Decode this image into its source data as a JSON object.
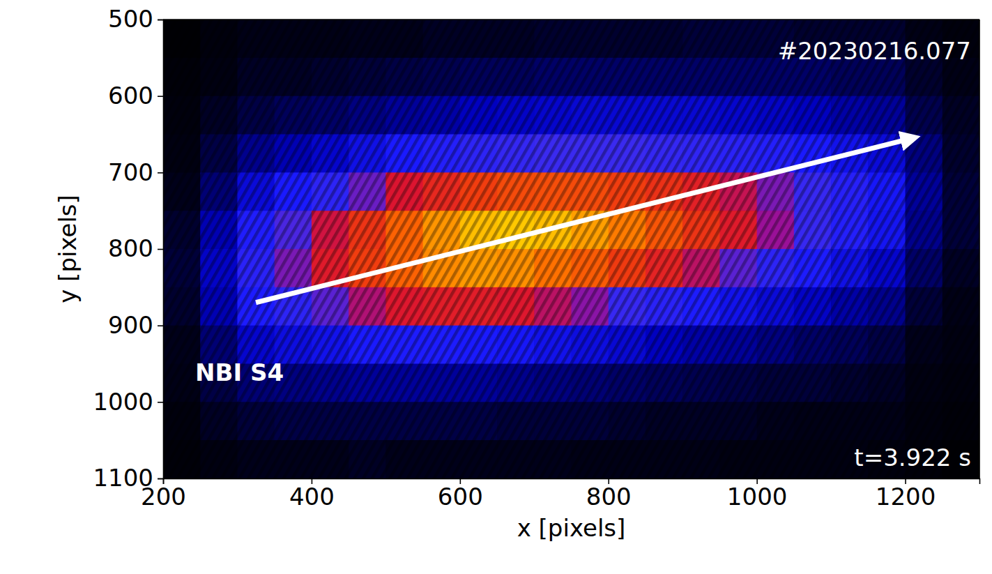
{
  "chart_data": {
    "type": "heatmap",
    "x": [
      225,
      275,
      325,
      375,
      425,
      475,
      525,
      575,
      625,
      675,
      725,
      775,
      825,
      875,
      925,
      975,
      1025,
      1075,
      1125,
      1175,
      1225,
      1275
    ],
    "y": [
      525,
      575,
      625,
      675,
      725,
      775,
      825,
      875,
      925,
      975,
      1025,
      1075
    ],
    "cells": [
      [
        0.01,
        0.03,
        0.05,
        0.05,
        0.05,
        0.06,
        0.06,
        0.07,
        0.07,
        0.07,
        0.08,
        0.08,
        0.08,
        0.08,
        0.09,
        0.09,
        0.09,
        0.08,
        0.08,
        0.08,
        0.05,
        0.03
      ],
      [
        0.02,
        0.04,
        0.07,
        0.07,
        0.08,
        0.09,
        0.1,
        0.11,
        0.12,
        0.12,
        0.13,
        0.13,
        0.13,
        0.13,
        0.13,
        0.13,
        0.13,
        0.13,
        0.12,
        0.12,
        0.08,
        0.05
      ],
      [
        0.03,
        0.07,
        0.1,
        0.12,
        0.13,
        0.15,
        0.17,
        0.18,
        0.2,
        0.21,
        0.22,
        0.23,
        0.23,
        0.23,
        0.23,
        0.22,
        0.21,
        0.2,
        0.18,
        0.17,
        0.11,
        0.07
      ],
      [
        0.04,
        0.1,
        0.16,
        0.19,
        0.22,
        0.26,
        0.3,
        0.33,
        0.36,
        0.38,
        0.4,
        0.4,
        0.4,
        0.38,
        0.37,
        0.35,
        0.33,
        0.3,
        0.27,
        0.24,
        0.15,
        0.08
      ],
      [
        0.06,
        0.14,
        0.24,
        0.3,
        0.36,
        0.43,
        0.52,
        0.59,
        0.66,
        0.7,
        0.71,
        0.7,
        0.66,
        0.62,
        0.56,
        0.5,
        0.44,
        0.39,
        0.34,
        0.29,
        0.17,
        0.09
      ],
      [
        0.08,
        0.19,
        0.32,
        0.41,
        0.51,
        0.63,
        0.77,
        0.88,
        0.96,
        0.98,
        0.96,
        0.9,
        0.83,
        0.73,
        0.63,
        0.54,
        0.46,
        0.39,
        0.33,
        0.28,
        0.16,
        0.09
      ],
      [
        0.09,
        0.21,
        0.35,
        0.44,
        0.54,
        0.66,
        0.77,
        0.86,
        0.89,
        0.87,
        0.81,
        0.75,
        0.65,
        0.57,
        0.49,
        0.42,
        0.36,
        0.31,
        0.26,
        0.22,
        0.13,
        0.07
      ],
      [
        0.08,
        0.19,
        0.31,
        0.36,
        0.42,
        0.48,
        0.53,
        0.55,
        0.55,
        0.53,
        0.49,
        0.45,
        0.39,
        0.35,
        0.31,
        0.27,
        0.24,
        0.21,
        0.18,
        0.16,
        0.09,
        0.05
      ],
      [
        0.06,
        0.14,
        0.22,
        0.25,
        0.27,
        0.3,
        0.31,
        0.31,
        0.3,
        0.29,
        0.27,
        0.25,
        0.23,
        0.2,
        0.18,
        0.17,
        0.15,
        0.13,
        0.12,
        0.1,
        0.06,
        0.04
      ],
      [
        0.05,
        0.1,
        0.14,
        0.15,
        0.16,
        0.17,
        0.17,
        0.17,
        0.17,
        0.16,
        0.15,
        0.14,
        0.13,
        0.12,
        0.11,
        0.1,
        0.09,
        0.09,
        0.08,
        0.07,
        0.04,
        0.03
      ],
      [
        0.03,
        0.07,
        0.09,
        0.1,
        0.1,
        0.1,
        0.1,
        0.1,
        0.1,
        0.09,
        0.09,
        0.09,
        0.08,
        0.07,
        0.07,
        0.07,
        0.06,
        0.05,
        0.05,
        0.05,
        0.03,
        0.02
      ],
      [
        0.02,
        0.04,
        0.06,
        0.06,
        0.06,
        0.07,
        0.06,
        0.06,
        0.06,
        0.06,
        0.06,
        0.05,
        0.05,
        0.05,
        0.05,
        0.04,
        0.04,
        0.04,
        0.04,
        0.03,
        0.02,
        0.01
      ]
    ],
    "xlim": [
      200,
      1300
    ],
    "ylim": [
      1100,
      500
    ],
    "xticks": [
      200,
      400,
      600,
      800,
      1000,
      1200
    ],
    "yticks": [
      500,
      600,
      700,
      800,
      900,
      1000,
      1100
    ],
    "x_label": "x [pixels]",
    "y_label": "y [pixels]",
    "annotations": [
      "#20230216.077",
      "t=3.922 s"
    ],
    "arrow": {
      "label": "NBI S4",
      "x": [
        325,
        1210
      ],
      "y": [
        870,
        655
      ]
    }
  }
}
